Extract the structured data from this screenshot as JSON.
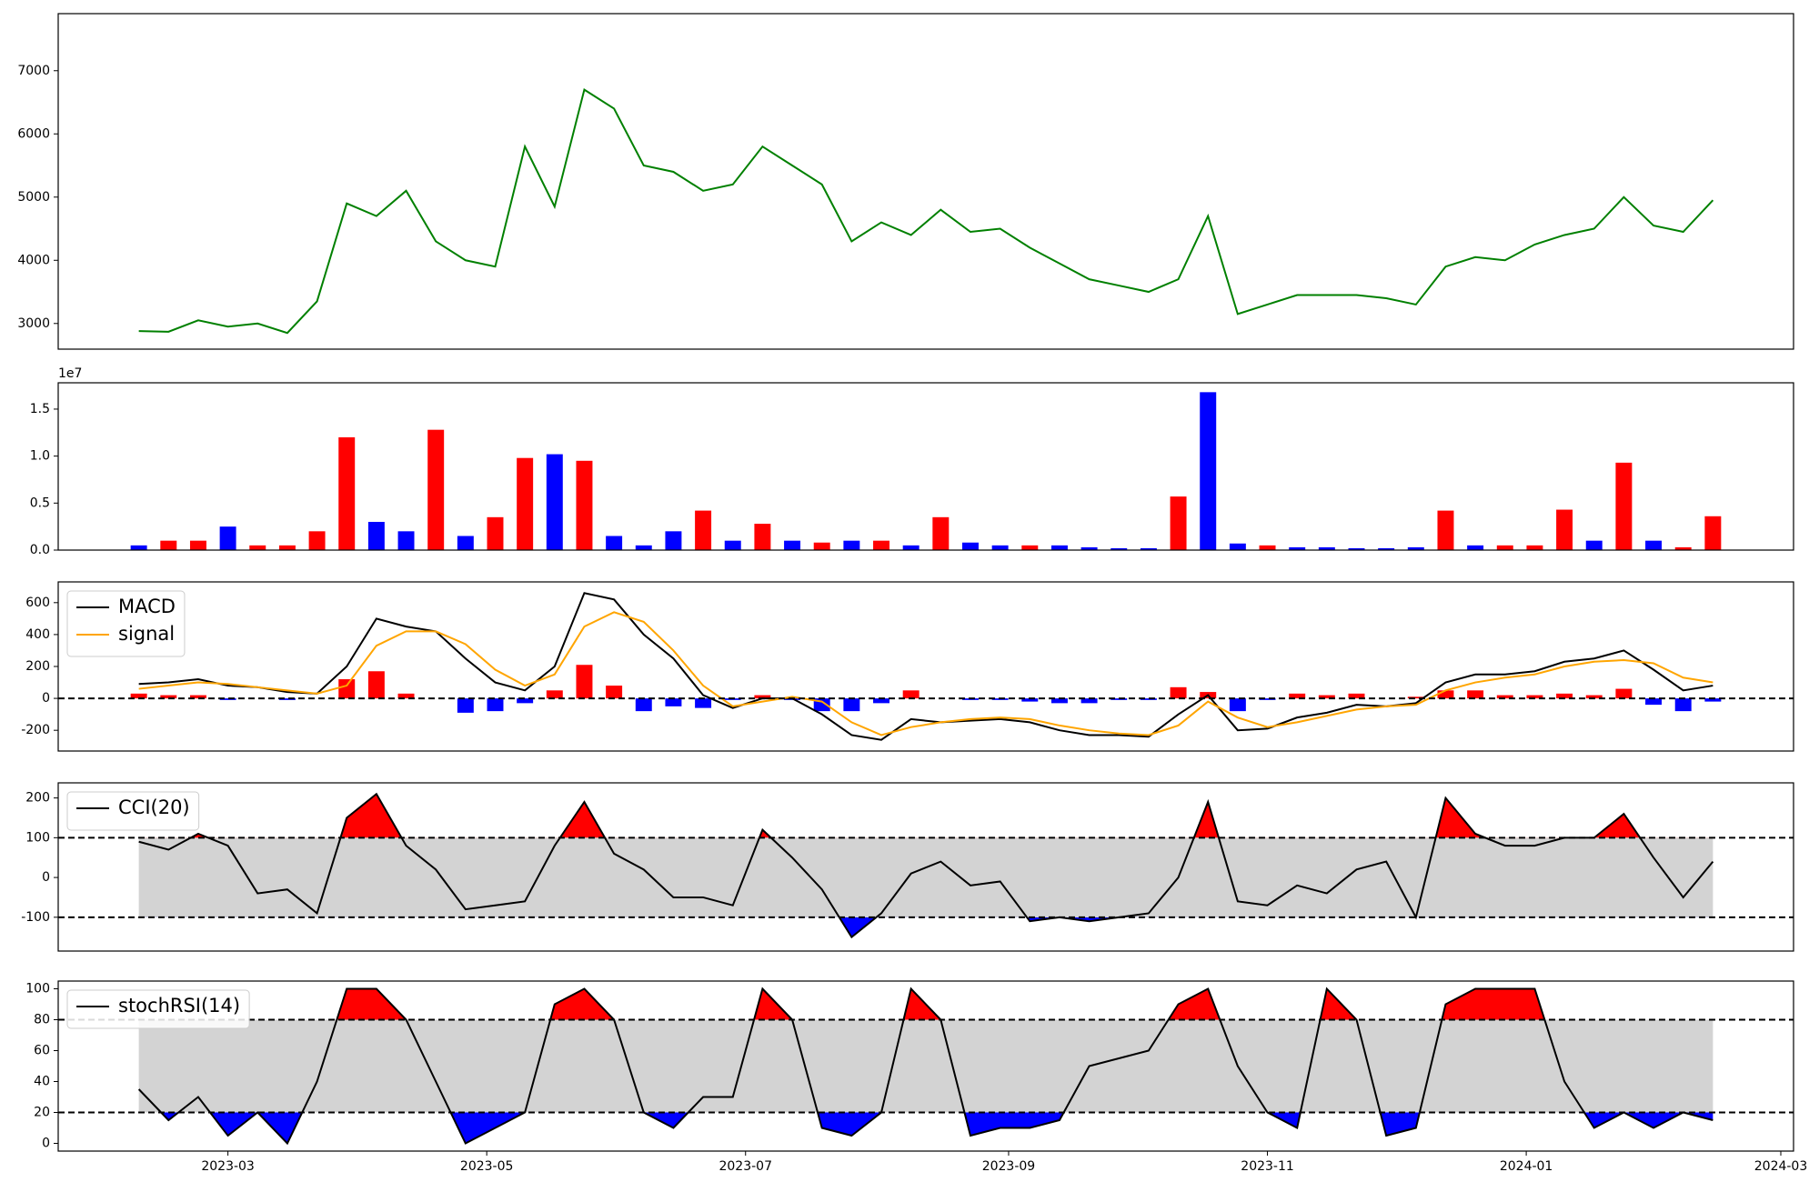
{
  "chart_data": [
    {
      "type": "line",
      "xlim": [
        19377,
        19786
      ],
      "ylim": [
        2594,
        7903
      ],
      "yticks": [
        3000,
        4000,
        5000,
        6000,
        7000
      ],
      "x": [
        19396,
        19403,
        19410,
        19417,
        19424,
        19431,
        19438,
        19445,
        19452,
        19459,
        19466,
        19473,
        19480,
        19487,
        19494,
        19501,
        19508,
        19515,
        19522,
        19529,
        19536,
        19543,
        19550,
        19557,
        19564,
        19571,
        19578,
        19585,
        19592,
        19599,
        19606,
        19613,
        19620,
        19627,
        19634,
        19641,
        19648,
        19655,
        19662,
        19669,
        19676,
        19683,
        19690,
        19697,
        19704,
        19711,
        19718,
        19725,
        19732,
        19739,
        19746,
        19753,
        19760,
        19767
      ],
      "series": [
        {
          "color": "green",
          "values": [
            2880,
            2870,
            3050,
            2950,
            3000,
            2850,
            3350,
            4900,
            4700,
            5100,
            4300,
            4000,
            3900,
            5800,
            4850,
            6700,
            6400,
            5500,
            5400,
            5100,
            5200,
            5800,
            5500,
            5200,
            4300,
            4600,
            4400,
            4800,
            4450,
            4500,
            4200,
            3950,
            3700,
            3600,
            3500,
            3700,
            4700,
            3150,
            3300,
            3450,
            3450,
            3450,
            3400,
            3300,
            3900,
            4050,
            4000,
            4250,
            4400,
            4500,
            5000,
            4550,
            4450,
            4950
          ]
        }
      ]
    },
    {
      "type": "bar",
      "xlim": [
        19377,
        19786
      ],
      "ylim": [
        0,
        1.78
      ],
      "offset_label": "1e7",
      "yticks": [
        {
          "value": 0,
          "label": "0.0"
        },
        0.5,
        {
          "value": 1,
          "label": "1.0"
        },
        1.5
      ],
      "x": [
        19396,
        19403,
        19410,
        19417,
        19424,
        19431,
        19438,
        19445,
        19452,
        19459,
        19466,
        19473,
        19480,
        19487,
        19494,
        19501,
        19508,
        19515,
        19522,
        19529,
        19536,
        19543,
        19550,
        19557,
        19564,
        19571,
        19578,
        19585,
        19592,
        19599,
        19606,
        19613,
        19620,
        19627,
        19634,
        19641,
        19648,
        19655,
        19662,
        19669,
        19676,
        19683,
        19690,
        19697,
        19704,
        19711,
        19718,
        19725,
        19732,
        19739,
        19746,
        19753,
        19760,
        19767
      ],
      "series": [
        {
          "values": [
            0.05,
            0.1,
            0.1,
            0.25,
            0.05,
            0.05,
            0.2,
            1.2,
            0.3,
            0.2,
            1.28,
            0.15,
            0.35,
            0.98,
            1.02,
            0.95,
            0.15,
            0.05,
            0.2,
            0.42,
            0.1,
            0.28,
            0.1,
            0.08,
            0.1,
            0.1,
            0.05,
            0.35,
            0.08,
            0.05,
            0.05,
            0.05,
            0.03,
            0.02,
            0.02,
            0.57,
            1.68,
            0.07,
            0.05,
            0.03,
            0.03,
            0.02,
            0.02,
            0.03,
            0.42,
            0.05,
            0.05,
            0.05,
            0.43,
            0.1,
            0.93,
            0.1,
            0.03,
            0.36
          ],
          "colors": [
            "blue",
            "red",
            "red",
            "blue",
            "red",
            "red",
            "red",
            "red",
            "blue",
            "blue",
            "red",
            "blue",
            "red",
            "red",
            "blue",
            "red",
            "blue",
            "blue",
            "blue",
            "red",
            "blue",
            "red",
            "blue",
            "red",
            "blue",
            "red",
            "blue",
            "red",
            "blue",
            "blue",
            "red",
            "blue",
            "blue",
            "blue",
            "blue",
            "red",
            "blue",
            "blue",
            "red",
            "blue",
            "blue",
            "blue",
            "blue",
            "blue",
            "red",
            "blue",
            "red",
            "red",
            "red",
            "blue",
            "red",
            "blue",
            "red",
            "red"
          ]
        }
      ]
    },
    {
      "type": "line",
      "xlim": [
        19377,
        19786
      ],
      "ylim": [
        -330,
        730
      ],
      "yticks": [
        -200,
        0,
        200,
        400,
        600
      ],
      "hlines": [
        0
      ],
      "legend": "upper left",
      "x": [
        19396,
        19403,
        19410,
        19417,
        19424,
        19431,
        19438,
        19445,
        19452,
        19459,
        19466,
        19473,
        19480,
        19487,
        19494,
        19501,
        19508,
        19515,
        19522,
        19529,
        19536,
        19543,
        19550,
        19557,
        19564,
        19571,
        19578,
        19585,
        19592,
        19599,
        19606,
        19613,
        19620,
        19627,
        19634,
        19641,
        19648,
        19655,
        19662,
        19669,
        19676,
        19683,
        19690,
        19697,
        19704,
        19711,
        19718,
        19725,
        19732,
        19739,
        19746,
        19753,
        19760,
        19767
      ],
      "series": [
        {
          "type": "bar",
          "pos_color": "red",
          "neg_color": "blue",
          "values": [
            30,
            20,
            20,
            -10,
            0,
            -10,
            0,
            120,
            170,
            30,
            0,
            -90,
            -80,
            -30,
            50,
            210,
            80,
            -80,
            -50,
            -60,
            -10,
            20,
            -10,
            -80,
            -80,
            -30,
            50,
            0,
            -10,
            -10,
            -20,
            -30,
            -30,
            -10,
            -10,
            70,
            40,
            -80,
            -10,
            30,
            20,
            30,
            0,
            10,
            50,
            50,
            20,
            20,
            30,
            20,
            60,
            -40,
            -80,
            -20
          ]
        },
        {
          "name": "MACD",
          "color": "black",
          "values": [
            90,
            100,
            120,
            80,
            70,
            40,
            30,
            200,
            500,
            450,
            420,
            250,
            100,
            50,
            200,
            660,
            620,
            400,
            250,
            20,
            -60,
            0,
            0,
            -100,
            -230,
            -260,
            -130,
            -150,
            -140,
            -130,
            -150,
            -200,
            -230,
            -230,
            -240,
            -100,
            20,
            -200,
            -190,
            -120,
            -90,
            -40,
            -50,
            -30,
            100,
            150,
            150,
            170,
            230,
            250,
            300,
            180,
            50,
            80
          ]
        },
        {
          "name": "signal",
          "color": "orange",
          "values": [
            60,
            80,
            100,
            90,
            70,
            50,
            30,
            80,
            330,
            420,
            420,
            340,
            180,
            80,
            150,
            450,
            540,
            480,
            300,
            80,
            -50,
            -20,
            10,
            -20,
            -150,
            -230,
            -180,
            -150,
            -130,
            -120,
            -130,
            -170,
            -200,
            -220,
            -230,
            -170,
            -20,
            -120,
            -180,
            -150,
            -110,
            -70,
            -50,
            -40,
            50,
            100,
            130,
            150,
            200,
            230,
            240,
            220,
            130,
            100
          ]
        }
      ]
    },
    {
      "type": "line",
      "xlim": [
        19377,
        19786
      ],
      "ylim": [
        -185,
        238
      ],
      "yticks": [
        -100,
        0,
        100,
        200
      ],
      "hlines": [
        100,
        -100
      ],
      "band_color": "lightgray",
      "above_color": "red",
      "below_color": "blue",
      "legend": "upper left",
      "x": [
        19396,
        19403,
        19410,
        19417,
        19424,
        19431,
        19438,
        19445,
        19452,
        19459,
        19466,
        19473,
        19480,
        19487,
        19494,
        19501,
        19508,
        19515,
        19522,
        19529,
        19536,
        19543,
        19550,
        19557,
        19564,
        19571,
        19578,
        19585,
        19592,
        19599,
        19606,
        19613,
        19620,
        19627,
        19634,
        19641,
        19648,
        19655,
        19662,
        19669,
        19676,
        19683,
        19690,
        19697,
        19704,
        19711,
        19718,
        19725,
        19732,
        19739,
        19746,
        19753,
        19760,
        19767
      ],
      "series": [
        {
          "name": "CCI(20)",
          "color": "black",
          "values": [
            90,
            70,
            110,
            80,
            -40,
            -30,
            -90,
            150,
            210,
            80,
            20,
            -80,
            -70,
            -60,
            80,
            190,
            60,
            20,
            -50,
            -50,
            -70,
            120,
            50,
            -30,
            -150,
            -90,
            10,
            40,
            -20,
            -10,
            -110,
            -100,
            -110,
            -100,
            -90,
            0,
            190,
            -60,
            -70,
            -20,
            -40,
            20,
            40,
            -100,
            200,
            110,
            80,
            80,
            100,
            100,
            160,
            50,
            -50,
            40
          ]
        }
      ]
    },
    {
      "type": "line",
      "xlim": [
        19377,
        19786
      ],
      "ylim": [
        -5,
        105
      ],
      "yticks": [
        0,
        20,
        40,
        60,
        80,
        100
      ],
      "hlines": [
        80,
        20
      ],
      "band_color": "lightgray",
      "above_color": "red",
      "below_color": "blue",
      "legend": "upper left",
      "xticks": [
        {
          "value": 19417,
          "label": "2023-03"
        },
        {
          "value": 19478,
          "label": "2023-05"
        },
        {
          "value": 19539,
          "label": "2023-07"
        },
        {
          "value": 19601,
          "label": "2023-09"
        },
        {
          "value": 19662,
          "label": "2023-11"
        },
        {
          "value": 19723,
          "label": "2024-01"
        },
        {
          "value": 19783,
          "label": "2024-03"
        }
      ],
      "x": [
        19396,
        19403,
        19410,
        19417,
        19424,
        19431,
        19438,
        19445,
        19452,
        19459,
        19466,
        19473,
        19480,
        19487,
        19494,
        19501,
        19508,
        19515,
        19522,
        19529,
        19536,
        19543,
        19550,
        19557,
        19564,
        19571,
        19578,
        19585,
        19592,
        19599,
        19606,
        19613,
        19620,
        19627,
        19634,
        19641,
        19648,
        19655,
        19662,
        19669,
        19676,
        19683,
        19690,
        19697,
        19704,
        19711,
        19718,
        19725,
        19732,
        19739,
        19746,
        19753,
        19760,
        19767
      ],
      "series": [
        {
          "name": "stochRSI(14)",
          "color": "black",
          "values": [
            35,
            15,
            30,
            5,
            20,
            0,
            40,
            100,
            100,
            80,
            40,
            0,
            10,
            20,
            90,
            100,
            80,
            20,
            10,
            30,
            30,
            100,
            80,
            10,
            5,
            20,
            100,
            80,
            5,
            10,
            10,
            15,
            50,
            55,
            60,
            90,
            100,
            50,
            20,
            10,
            100,
            80,
            5,
            10,
            90,
            100,
            100,
            100,
            40,
            10,
            20,
            10,
            20,
            15
          ]
        }
      ]
    }
  ]
}
